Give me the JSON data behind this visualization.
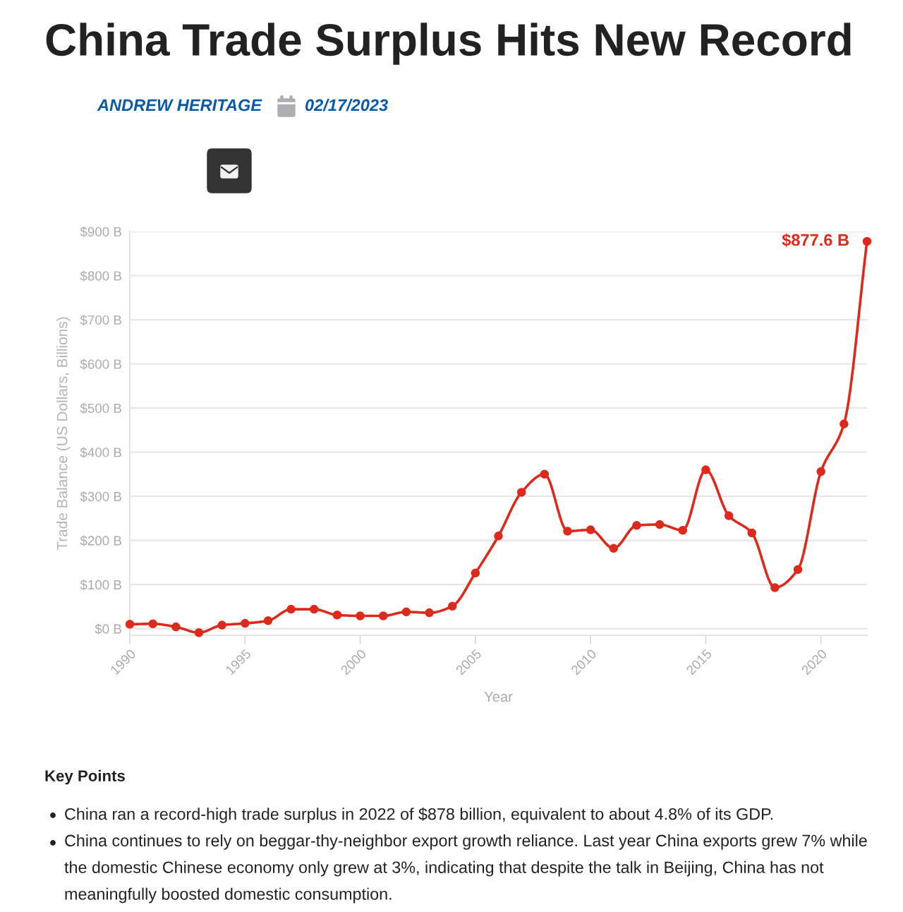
{
  "chart_data": {
    "type": "line",
    "title": "China Trade Surplus Hits New Record",
    "xlabel": "Year",
    "ylabel": "Trade Balance (US Dollars, Billions)",
    "x": [
      1990,
      1991,
      1992,
      1993,
      1994,
      1995,
      1996,
      1997,
      1998,
      1999,
      2000,
      2001,
      2002,
      2003,
      2004,
      2005,
      2006,
      2007,
      2008,
      2009,
      2010,
      2011,
      2012,
      2013,
      2014,
      2015,
      2016,
      2017,
      2018,
      2019,
      2020,
      2021,
      2022
    ],
    "series": [
      {
        "color": "#dc2a1c",
        "values": [
          10,
          11,
          4,
          -9,
          8,
          12,
          18,
          44,
          44,
          31,
          29,
          29,
          38,
          36,
          51,
          126,
          210,
          309,
          350,
          221,
          224,
          182,
          234,
          236,
          223,
          360,
          256,
          217,
          93,
          134,
          356,
          464,
          877.6
        ],
        "value_labels": [
          null,
          null,
          null,
          null,
          null,
          null,
          null,
          null,
          null,
          null,
          null,
          null,
          null,
          null,
          null,
          null,
          null,
          null,
          null,
          null,
          null,
          null,
          null,
          null,
          null,
          null,
          null,
          null,
          null,
          null,
          null,
          null,
          "$877.6 B"
        ]
      }
    ],
    "xlim": [
      1990,
      2022
    ],
    "xticks": [
      1990,
      1995,
      2000,
      2005,
      2010,
      2015,
      2020
    ],
    "ylim": [
      -15,
      900
    ],
    "yticks": [
      {
        "value": 0,
        "label": "$0 B"
      },
      {
        "value": 100,
        "label": "$100 B"
      },
      {
        "value": 200,
        "label": "$200 B"
      },
      {
        "value": 300,
        "label": "$300 B"
      },
      {
        "value": 400,
        "label": "$400 B"
      },
      {
        "value": 500,
        "label": "$500 B"
      },
      {
        "value": 600,
        "label": "$600 B"
      },
      {
        "value": 700,
        "label": "$700 B"
      },
      {
        "value": 800,
        "label": "$800 B"
      },
      {
        "value": 900,
        "label": "$900 B"
      }
    ],
    "grid": "y",
    "marker": "circle",
    "line_style": "solid",
    "annotations": [
      "ANDREW HERITAGE",
      "02/17/2023",
      "Key Points",
      "China ran a record-high trade surplus in 2022 of $878 billion, equivalent to about 4.8% of its GDP.",
      "China continues to rely on beggar-thy-neighbor export growth reliance. Last year China exports grew 7% while\nthe domestic Chinese economy only grew at 3%, indicating that despite the talk in Beijing, China has not\nmeaningfully boosted domestic consumption."
    ]
  }
}
